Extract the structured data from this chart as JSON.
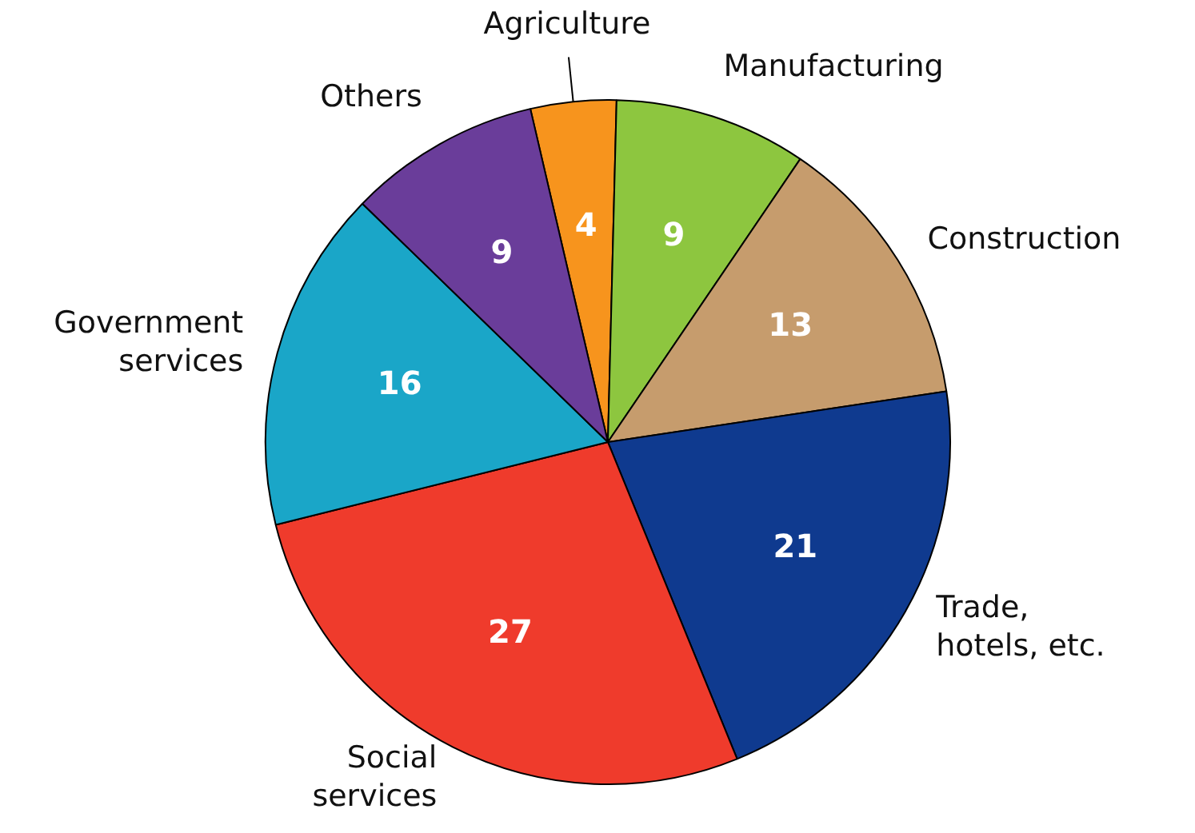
{
  "chart_data": {
    "type": "pie",
    "categories": [
      "Agriculture",
      "Manufacturing",
      "Construction",
      "Trade,\nhotels, etc.",
      "Social\nservices",
      "Government\nservices",
      "Others"
    ],
    "values": [
      4,
      9,
      13,
      21,
      27,
      16,
      9
    ],
    "colors": [
      "#f7941d",
      "#8dc63f",
      "#c69c6d",
      "#0f3a8f",
      "#ef3b2c",
      "#1aa6c8",
      "#6a3d9a"
    ],
    "data_labels": true,
    "legend": false
  }
}
